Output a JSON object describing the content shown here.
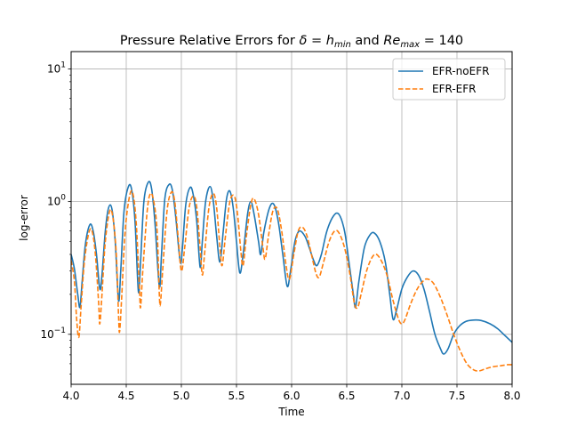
{
  "chart_data": {
    "type": "line",
    "title_prefix": "Pressure Relative Errors for ",
    "title_math": {
      "delta": "δ",
      "equals1": " = ",
      "h": "h",
      "h_sub": "min",
      "and": " and ",
      "re": "Re",
      "re_sub": "max",
      "equals2": " = ",
      "value": "140"
    },
    "xlabel": "Time",
    "ylabel": "log-error",
    "xlim": [
      4.0,
      8.0
    ],
    "ylim": [
      0.042,
      13.5
    ],
    "yscale": "log",
    "grid": true,
    "legend_position": "top-right",
    "x_ticks": [
      "4.0",
      "4.5",
      "5.0",
      "5.5",
      "6.0",
      "6.5",
      "7.0",
      "7.5",
      "8.0"
    ],
    "y_ticks": [
      {
        "value": 0.1,
        "base": "10",
        "exp": "−1"
      },
      {
        "value": 1,
        "base": "10",
        "exp": "0"
      },
      {
        "value": 10,
        "base": "10",
        "exp": "1"
      }
    ],
    "series": [
      {
        "name": "EFR-noEFR",
        "color": "#1f77b4",
        "style": "solid",
        "points": [
          [
            4.0,
            0.4
          ],
          [
            4.03,
            0.31
          ],
          [
            4.06,
            0.2
          ],
          [
            4.08,
            0.16
          ],
          [
            4.1,
            0.25
          ],
          [
            4.13,
            0.48
          ],
          [
            4.17,
            0.67
          ],
          [
            4.2,
            0.6
          ],
          [
            4.23,
            0.4
          ],
          [
            4.26,
            0.22
          ],
          [
            4.28,
            0.28
          ],
          [
            4.31,
            0.6
          ],
          [
            4.34,
            0.9
          ],
          [
            4.37,
            0.88
          ],
          [
            4.4,
            0.5
          ],
          [
            4.43,
            0.18
          ],
          [
            4.45,
            0.3
          ],
          [
            4.48,
            0.85
          ],
          [
            4.52,
            1.3
          ],
          [
            4.55,
            1.22
          ],
          [
            4.58,
            0.7
          ],
          [
            4.61,
            0.21
          ],
          [
            4.63,
            0.35
          ],
          [
            4.66,
            1.0
          ],
          [
            4.7,
            1.4
          ],
          [
            4.73,
            1.25
          ],
          [
            4.76,
            0.7
          ],
          [
            4.8,
            0.23
          ],
          [
            4.82,
            0.4
          ],
          [
            4.85,
            1.05
          ],
          [
            4.89,
            1.35
          ],
          [
            4.92,
            1.2
          ],
          [
            4.95,
            0.75
          ],
          [
            4.99,
            0.35
          ],
          [
            5.01,
            0.45
          ],
          [
            5.04,
            0.95
          ],
          [
            5.08,
            1.28
          ],
          [
            5.11,
            1.1
          ],
          [
            5.14,
            0.7
          ],
          [
            5.17,
            0.32
          ],
          [
            5.19,
            0.5
          ],
          [
            5.22,
            1.0
          ],
          [
            5.26,
            1.3
          ],
          [
            5.29,
            1.0
          ],
          [
            5.32,
            0.55
          ],
          [
            5.35,
            0.35
          ],
          [
            5.38,
            0.6
          ],
          [
            5.41,
            1.05
          ],
          [
            5.44,
            1.2
          ],
          [
            5.47,
            0.9
          ],
          [
            5.5,
            0.5
          ],
          [
            5.53,
            0.29
          ],
          [
            5.56,
            0.4
          ],
          [
            5.6,
            0.8
          ],
          [
            5.63,
            1.0
          ],
          [
            5.66,
            0.8
          ],
          [
            5.7,
            0.5
          ],
          [
            5.72,
            0.4
          ],
          [
            5.75,
            0.6
          ],
          [
            5.8,
            0.9
          ],
          [
            5.84,
            0.95
          ],
          [
            5.88,
            0.7
          ],
          [
            5.92,
            0.4
          ],
          [
            5.96,
            0.23
          ],
          [
            5.99,
            0.3
          ],
          [
            6.03,
            0.5
          ],
          [
            6.07,
            0.6
          ],
          [
            6.12,
            0.55
          ],
          [
            6.16,
            0.45
          ],
          [
            6.2,
            0.36
          ],
          [
            6.23,
            0.33
          ],
          [
            6.27,
            0.4
          ],
          [
            6.32,
            0.6
          ],
          [
            6.38,
            0.78
          ],
          [
            6.43,
            0.8
          ],
          [
            6.48,
            0.6
          ],
          [
            6.52,
            0.35
          ],
          [
            6.56,
            0.2
          ],
          [
            6.58,
            0.16
          ],
          [
            6.61,
            0.25
          ],
          [
            6.66,
            0.45
          ],
          [
            6.71,
            0.56
          ],
          [
            6.75,
            0.58
          ],
          [
            6.8,
            0.5
          ],
          [
            6.85,
            0.35
          ],
          [
            6.89,
            0.2
          ],
          [
            6.92,
            0.13
          ],
          [
            6.95,
            0.15
          ],
          [
            7.0,
            0.22
          ],
          [
            7.05,
            0.27
          ],
          [
            7.1,
            0.3
          ],
          [
            7.15,
            0.28
          ],
          [
            7.2,
            0.22
          ],
          [
            7.25,
            0.15
          ],
          [
            7.3,
            0.1
          ],
          [
            7.35,
            0.078
          ],
          [
            7.38,
            0.071
          ],
          [
            7.42,
            0.078
          ],
          [
            7.47,
            0.1
          ],
          [
            7.52,
            0.115
          ],
          [
            7.58,
            0.125
          ],
          [
            7.65,
            0.128
          ],
          [
            7.72,
            0.127
          ],
          [
            7.8,
            0.12
          ],
          [
            7.87,
            0.11
          ],
          [
            7.94,
            0.097
          ],
          [
            8.0,
            0.087
          ]
        ]
      },
      {
        "name": "EFR-EFR",
        "color": "#ff7f0e",
        "style": "dashed",
        "points": [
          [
            4.0,
            0.36
          ],
          [
            4.03,
            0.25
          ],
          [
            4.05,
            0.13
          ],
          [
            4.07,
            0.095
          ],
          [
            4.09,
            0.16
          ],
          [
            4.12,
            0.35
          ],
          [
            4.16,
            0.58
          ],
          [
            4.19,
            0.6
          ],
          [
            4.22,
            0.4
          ],
          [
            4.25,
            0.17
          ],
          [
            4.26,
            0.12
          ],
          [
            4.28,
            0.2
          ],
          [
            4.31,
            0.5
          ],
          [
            4.35,
            0.85
          ],
          [
            4.38,
            0.75
          ],
          [
            4.41,
            0.4
          ],
          [
            4.43,
            0.14
          ],
          [
            4.44,
            0.105
          ],
          [
            4.46,
            0.2
          ],
          [
            4.49,
            0.6
          ],
          [
            4.53,
            1.1
          ],
          [
            4.56,
            1.15
          ],
          [
            4.59,
            0.7
          ],
          [
            4.62,
            0.22
          ],
          [
            4.63,
            0.16
          ],
          [
            4.65,
            0.3
          ],
          [
            4.69,
            0.85
          ],
          [
            4.72,
            1.15
          ],
          [
            4.75,
            1.0
          ],
          [
            4.78,
            0.6
          ],
          [
            4.8,
            0.2
          ],
          [
            4.81,
            0.17
          ],
          [
            4.83,
            0.3
          ],
          [
            4.87,
            0.85
          ],
          [
            4.91,
            1.18
          ],
          [
            4.94,
            1.0
          ],
          [
            4.97,
            0.55
          ],
          [
            5.0,
            0.3
          ],
          [
            5.03,
            0.45
          ],
          [
            5.07,
            0.9
          ],
          [
            5.11,
            1.1
          ],
          [
            5.14,
            0.9
          ],
          [
            5.17,
            0.45
          ],
          [
            5.19,
            0.28
          ],
          [
            5.21,
            0.4
          ],
          [
            5.25,
            0.9
          ],
          [
            5.29,
            1.15
          ],
          [
            5.32,
            0.9
          ],
          [
            5.35,
            0.45
          ],
          [
            5.37,
            0.33
          ],
          [
            5.4,
            0.55
          ],
          [
            5.44,
            1.0
          ],
          [
            5.48,
            1.1
          ],
          [
            5.51,
            0.8
          ],
          [
            5.54,
            0.42
          ],
          [
            5.56,
            0.33
          ],
          [
            5.59,
            0.55
          ],
          [
            5.63,
            0.95
          ],
          [
            5.66,
            1.05
          ],
          [
            5.7,
            0.8
          ],
          [
            5.74,
            0.45
          ],
          [
            5.76,
            0.37
          ],
          [
            5.79,
            0.55
          ],
          [
            5.83,
            0.85
          ],
          [
            5.87,
            0.88
          ],
          [
            5.91,
            0.6
          ],
          [
            5.95,
            0.33
          ],
          [
            5.98,
            0.26
          ],
          [
            6.02,
            0.4
          ],
          [
            6.06,
            0.6
          ],
          [
            6.1,
            0.64
          ],
          [
            6.14,
            0.55
          ],
          [
            6.18,
            0.4
          ],
          [
            6.22,
            0.29
          ],
          [
            6.25,
            0.27
          ],
          [
            6.29,
            0.35
          ],
          [
            6.34,
            0.5
          ],
          [
            6.39,
            0.6
          ],
          [
            6.43,
            0.58
          ],
          [
            6.48,
            0.45
          ],
          [
            6.53,
            0.28
          ],
          [
            6.57,
            0.17
          ],
          [
            6.6,
            0.16
          ],
          [
            6.63,
            0.2
          ],
          [
            6.68,
            0.3
          ],
          [
            6.73,
            0.38
          ],
          [
            6.77,
            0.4
          ],
          [
            6.82,
            0.35
          ],
          [
            6.87,
            0.27
          ],
          [
            6.92,
            0.18
          ],
          [
            6.97,
            0.13
          ],
          [
            7.0,
            0.12
          ],
          [
            7.03,
            0.13
          ],
          [
            7.08,
            0.17
          ],
          [
            7.14,
            0.22
          ],
          [
            7.2,
            0.255
          ],
          [
            7.24,
            0.26
          ],
          [
            7.29,
            0.24
          ],
          [
            7.35,
            0.19
          ],
          [
            7.41,
            0.14
          ],
          [
            7.47,
            0.1
          ],
          [
            7.53,
            0.075
          ],
          [
            7.59,
            0.06
          ],
          [
            7.65,
            0.054
          ],
          [
            7.7,
            0.053
          ],
          [
            7.76,
            0.055
          ],
          [
            7.83,
            0.057
          ],
          [
            7.9,
            0.058
          ],
          [
            7.96,
            0.059
          ],
          [
            8.0,
            0.059
          ]
        ]
      }
    ]
  }
}
